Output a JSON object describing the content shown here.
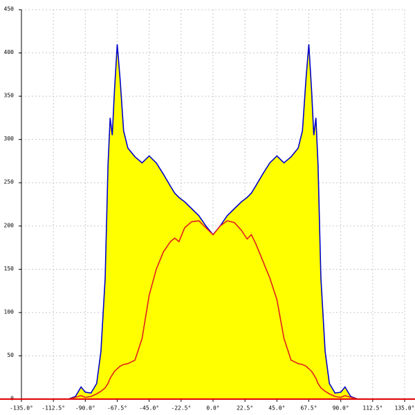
{
  "chart_data": {
    "type": "area",
    "x": [
      -102,
      -97,
      -93,
      -90,
      -86,
      -82,
      -79,
      -76,
      -74,
      -72.5,
      -71,
      -69.5,
      -67.5,
      -65.5,
      -63,
      -60,
      -55,
      -50,
      -45,
      -40,
      -35,
      -30,
      -27,
      -24,
      -20,
      -15,
      -10,
      -5,
      0,
      5,
      10,
      15,
      20,
      24,
      27,
      30,
      35,
      40,
      45,
      50,
      55,
      60,
      63,
      65.5,
      67.5,
      69.5,
      71,
      72.5,
      74,
      76,
      79,
      82,
      86,
      90,
      93,
      97,
      102
    ],
    "series": [
      {
        "color": "#0000cc",
        "fill": "#ffff00",
        "values": [
          0,
          3,
          14,
          8,
          7,
          18,
          55,
          140,
          270,
          325,
          305,
          355,
          410,
          370,
          310,
          290,
          280,
          273,
          281,
          273,
          260,
          246,
          238,
          233,
          228,
          220,
          212,
          200,
          190,
          200,
          212,
          220,
          228,
          233,
          238,
          246,
          260,
          273,
          281,
          273,
          280,
          290,
          310,
          370,
          410,
          355,
          305,
          325,
          270,
          140,
          55,
          18,
          7,
          8,
          14,
          3,
          0
        ]
      },
      {
        "color": "#e02020",
        "values": [
          0,
          2,
          4,
          2,
          3,
          6,
          9,
          13,
          18,
          24,
          28,
          32,
          35,
          38,
          40,
          41,
          45,
          70,
          120,
          150,
          170,
          182,
          186,
          182,
          198,
          205,
          206,
          198,
          190,
          200,
          206,
          204,
          195,
          185,
          190,
          180,
          160,
          140,
          115,
          70,
          45,
          41,
          40,
          38,
          35,
          32,
          28,
          24,
          18,
          13,
          9,
          6,
          3,
          2,
          4,
          2,
          0
        ]
      }
    ],
    "xlim": [
      -135,
      135
    ],
    "xticks": [
      {
        "value": -135,
        "label": "-135.0°"
      },
      {
        "value": -112.5,
        "label": "-112.5°"
      },
      {
        "value": -90,
        "label": "-90.0°"
      },
      {
        "value": -67.5,
        "label": "-67.5°"
      },
      {
        "value": -45,
        "label": "-45.0°"
      },
      {
        "value": -22.5,
        "label": "-22.5°"
      },
      {
        "value": 0,
        "label": "0.0°"
      },
      {
        "value": 22.5,
        "label": "22.5°"
      },
      {
        "value": 45,
        "label": "45.0°"
      },
      {
        "value": 67.5,
        "label": "67.5°"
      },
      {
        "value": 90,
        "label": "90.0°"
      },
      {
        "value": 112.5,
        "label": "112.5°"
      },
      {
        "value": 135,
        "label": "135.0°"
      }
    ],
    "ylim": [
      0,
      450
    ],
    "yticks": [
      0,
      50,
      100,
      150,
      200,
      250,
      300,
      350,
      400,
      450
    ],
    "grid": true
  }
}
